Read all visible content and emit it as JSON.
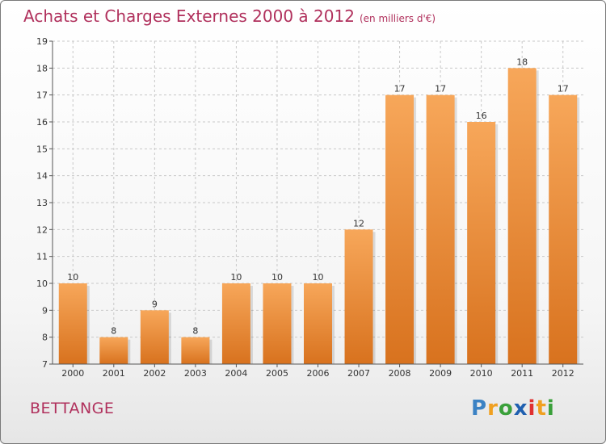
{
  "header": {
    "title": "Achats et Charges Externes 2000 à 2012",
    "unit": "(en milliers d'€)"
  },
  "footer": {
    "commune": "BETTANGE",
    "logo": {
      "letters": [
        "P",
        "r",
        "o",
        "x",
        "i",
        "t",
        "i"
      ],
      "colors": [
        "#3b82c4",
        "#f0a020",
        "#3aa03a",
        "#2060b0",
        "#e03030",
        "#f0a020",
        "#3aa03a"
      ]
    }
  },
  "colors": {
    "bar_top": "#f7a75a",
    "bar_bottom": "#d8721e",
    "title": "#b0305c",
    "grid": "#c8c8c8",
    "axis": "#555555"
  },
  "chart_data": {
    "type": "bar",
    "title": "Achats et Charges Externes 2000 à 2012",
    "subtitle": "(en milliers d'€)",
    "xlabel": "",
    "ylabel": "",
    "categories": [
      "2000",
      "2001",
      "2002",
      "2003",
      "2004",
      "2005",
      "2006",
      "2007",
      "2008",
      "2009",
      "2010",
      "2011",
      "2012"
    ],
    "values": [
      10,
      8,
      9,
      8,
      10,
      10,
      10,
      12,
      17,
      17,
      16,
      18,
      17
    ],
    "data_labels": [
      "10",
      "8",
      "9",
      "8",
      "10",
      "10",
      "10",
      "12",
      "17",
      "17",
      "16",
      "18",
      "17"
    ],
    "ylim": [
      7,
      19
    ],
    "yticks": [
      "7",
      "8",
      "9",
      "10",
      "11",
      "12",
      "13",
      "14",
      "15",
      "16",
      "17",
      "18",
      "19"
    ],
    "grid": true,
    "legend": "none"
  }
}
